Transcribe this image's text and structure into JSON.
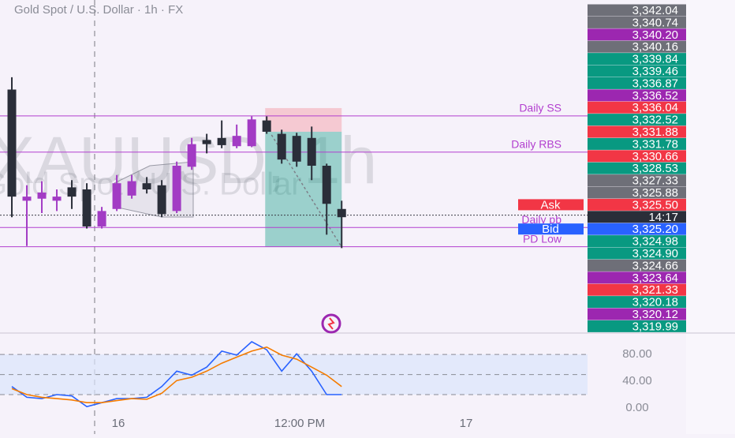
{
  "chart_data": [
    {
      "type": "candlestick",
      "title": "Gold Spot / U.S. Dollar · 1h · FX",
      "watermark": [
        "XAUUSD, 1h",
        "Gold Spot / U.S. Dollar"
      ],
      "xlim": [
        -0.79,
        38.4
      ],
      "ylim": [
        3315.1,
        3347.3
      ],
      "open": [
        3338.6,
        3327.8,
        3328.0,
        3327.8,
        3329.1,
        3328.9,
        3325.3,
        3327.0,
        3328.3,
        3329.5,
        3329.3,
        3326.8,
        3331.1,
        3333.7,
        3333.9,
        3333.1,
        3333.1,
        3335.6,
        3334.3,
        3334.1,
        3333.9,
        3331.2,
        3327.0
      ],
      "high": [
        3339.8,
        3329.3,
        3329.7,
        3328.9,
        3329.8,
        3329.5,
        3327.2,
        3330.3,
        3330.3,
        3330.1,
        3329.8,
        3331.6,
        3333.9,
        3334.3,
        3335.6,
        3335.2,
        3336.0,
        3336.0,
        3334.7,
        3334.4,
        3335.0,
        3331.4,
        3327.8
      ],
      "low": [
        3326.2,
        3323.4,
        3326.6,
        3326.8,
        3327.0,
        3325.1,
        3325.1,
        3326.8,
        3328.0,
        3328.5,
        3326.2,
        3326.6,
        3330.8,
        3332.4,
        3332.9,
        3332.9,
        3333.0,
        3334.3,
        3331.4,
        3331.1,
        3329.8,
        3324.5,
        3323.2
      ],
      "close": [
        3328.2,
        3328.2,
        3328.6,
        3328.2,
        3328.2,
        3325.3,
        3326.8,
        3329.5,
        3329.7,
        3328.9,
        3326.5,
        3331.2,
        3333.3,
        3333.3,
        3333.2,
        3334.1,
        3335.7,
        3334.5,
        3331.8,
        3331.6,
        3331.2,
        3327.5,
        3326.2
      ],
      "up_color": "#a23bc4",
      "down_color": "#2a2e39",
      "levels": [
        {
          "label": "Daily SS",
          "value": 3336.04
        },
        {
          "label": "Daily RBS",
          "value": 3332.52
        },
        {
          "label": "Daily pb",
          "value": 3325.2
        },
        {
          "label": "PD Low",
          "value": 3323.33
        }
      ],
      "level_color": "#b23fcf",
      "position": {
        "x": [
          16.9,
          22
        ],
        "stop": 3336.8,
        "entry": 3334.5,
        "target": 3323.3
      },
      "last_price": 3326.4,
      "price_labels": [
        {
          "value": 3342.04,
          "label": "3,342.04",
          "color": "#6e6f78"
        },
        {
          "value": 3340.74,
          "label": "3,340.74",
          "color": "#6e6f78"
        },
        {
          "value": 3340.2,
          "label": "3,340.20",
          "color": "#9c27b0"
        },
        {
          "value": 3340.16,
          "label": "3,340.16",
          "color": "#6e6f78"
        },
        {
          "value": 3339.84,
          "label": "3,339.84",
          "color": "#089981"
        },
        {
          "value": 3339.46,
          "label": "3,339.46",
          "color": "#089981"
        },
        {
          "value": 3336.87,
          "label": "3,336.87",
          "color": "#089981"
        },
        {
          "value": 3336.52,
          "label": "3,336.52",
          "color": "#9c27b0"
        },
        {
          "value": 3336.04,
          "label": "3,336.04",
          "color": "#f23645"
        },
        {
          "value": 3332.52,
          "label": "3,332.52",
          "color": "#089981"
        },
        {
          "value": 3331.88,
          "label": "3,331.88",
          "color": "#f23645"
        },
        {
          "value": 3331.78,
          "label": "3,331.78",
          "color": "#089981"
        },
        {
          "value": 3330.66,
          "label": "3,330.66",
          "color": "#f23645"
        },
        {
          "value": 3328.53,
          "label": "3,328.53",
          "color": "#089981"
        },
        {
          "value": 3327.33,
          "label": "3,327.33",
          "color": "#6e6f78"
        },
        {
          "value": 3325.88,
          "label": "3,325.88",
          "color": "#6e6f78"
        },
        {
          "value": 3325.5,
          "label": "3,325.50",
          "color": "#f23645",
          "tag": "Ask"
        },
        {
          "label": "14:17",
          "color": "#2a2e39"
        },
        {
          "value": 3325.2,
          "label": "3,325.20",
          "color": "#2962ff",
          "tag": "Bid"
        },
        {
          "value": 3324.98,
          "label": "3,324.98",
          "color": "#089981"
        },
        {
          "value": 3324.9,
          "label": "3,324.90",
          "color": "#089981"
        },
        {
          "value": 3324.66,
          "label": "3,324.66",
          "color": "#6e6f78"
        },
        {
          "value": 3323.64,
          "label": "3,323.64",
          "color": "#9c27b0"
        },
        {
          "value": 3321.33,
          "label": "3,321.33",
          "color": "#f23645"
        },
        {
          "value": 3320.18,
          "label": "3,320.18",
          "color": "#089981"
        },
        {
          "value": 3320.12,
          "label": "3,320.12",
          "color": "#9c27b0"
        },
        {
          "value": 3319.99,
          "label": "3,319.99",
          "color": "#089981"
        }
      ]
    },
    {
      "type": "line",
      "xlim": [
        -0.79,
        38.4
      ],
      "ylim": [
        -13,
        112
      ],
      "yticks": [
        {
          "value": 80,
          "label": "80.00"
        },
        {
          "value": 40,
          "label": "40.00"
        },
        {
          "value": 0,
          "label": "0.00"
        }
      ],
      "bands": [
        80,
        50,
        20
      ],
      "band_color": "#dbe6fb",
      "xticks": [
        {
          "value": 7.1,
          "label": "16"
        },
        {
          "value": 19.2,
          "label": "12:00 PM"
        },
        {
          "value": 30.3,
          "label": "17"
        }
      ],
      "series": [
        {
          "color": "#2962ff",
          "values": [
            32,
            16,
            14,
            20,
            18,
            2,
            8,
            14,
            14,
            16,
            32,
            55,
            49,
            61,
            85,
            79,
            99,
            87,
            55,
            81,
            55,
            20,
            20
          ]
        },
        {
          "color": "#f57c00",
          "values": [
            29,
            20,
            16,
            14,
            12,
            8,
            8,
            11,
            14,
            13,
            22,
            41,
            46,
            55,
            67,
            76,
            85,
            91,
            79,
            73,
            61,
            49,
            32
          ]
        }
      ]
    }
  ]
}
